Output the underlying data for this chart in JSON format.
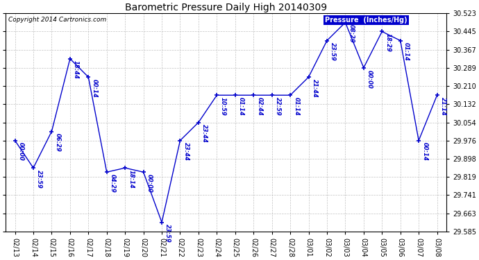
{
  "title": "Barometric Pressure Daily High 20140309",
  "ylabel": "Pressure  (Inches/Hg)",
  "copyright": "Copyright 2014 Cartronics.com",
  "ylim": [
    29.585,
    30.523
  ],
  "yticks": [
    29.585,
    29.663,
    29.741,
    29.819,
    29.898,
    29.976,
    30.054,
    30.132,
    30.21,
    30.289,
    30.367,
    30.445,
    30.523
  ],
  "line_color": "#0000cc",
  "background_color": "#ffffff",
  "grid_color": "#bbbbbb",
  "data_points": [
    {
      "date": "02/13",
      "time": "00:00",
      "value": 29.976
    },
    {
      "date": "02/14",
      "time": "23:59",
      "value": 29.858
    },
    {
      "date": "02/15",
      "time": "06:29",
      "value": 30.015
    },
    {
      "date": "02/16",
      "time": "18:44",
      "value": 30.328
    },
    {
      "date": "02/17",
      "time": "00:14",
      "value": 30.249
    },
    {
      "date": "02/18",
      "time": "04:29",
      "value": 29.84
    },
    {
      "date": "02/19",
      "time": "18:14",
      "value": 29.858
    },
    {
      "date": "02/20",
      "time": "00:00",
      "value": 29.84
    },
    {
      "date": "02/21",
      "time": "23:59",
      "value": 29.624
    },
    {
      "date": "02/22",
      "time": "23:44",
      "value": 29.976
    },
    {
      "date": "02/23",
      "time": "23:44",
      "value": 30.054
    },
    {
      "date": "02/24",
      "time": "10:59",
      "value": 30.171
    },
    {
      "date": "02/25",
      "time": "01:14",
      "value": 30.171
    },
    {
      "date": "02/26",
      "time": "02:44",
      "value": 30.171
    },
    {
      "date": "02/27",
      "time": "22:59",
      "value": 30.171
    },
    {
      "date": "02/28",
      "time": "01:14",
      "value": 30.171
    },
    {
      "date": "03/01",
      "time": "21:44",
      "value": 30.249
    },
    {
      "date": "03/02",
      "time": "23:59",
      "value": 30.406
    },
    {
      "date": "03/03",
      "time": "08:29",
      "value": 30.484
    },
    {
      "date": "03/04",
      "time": "00:00",
      "value": 30.289
    },
    {
      "date": "03/05",
      "time": "18:29",
      "value": 30.445
    },
    {
      "date": "03/06",
      "time": "01:14",
      "value": 30.406
    },
    {
      "date": "03/07",
      "time": "00:14",
      "value": 29.976
    },
    {
      "date": "03/08",
      "time": "21:14",
      "value": 30.171
    }
  ]
}
